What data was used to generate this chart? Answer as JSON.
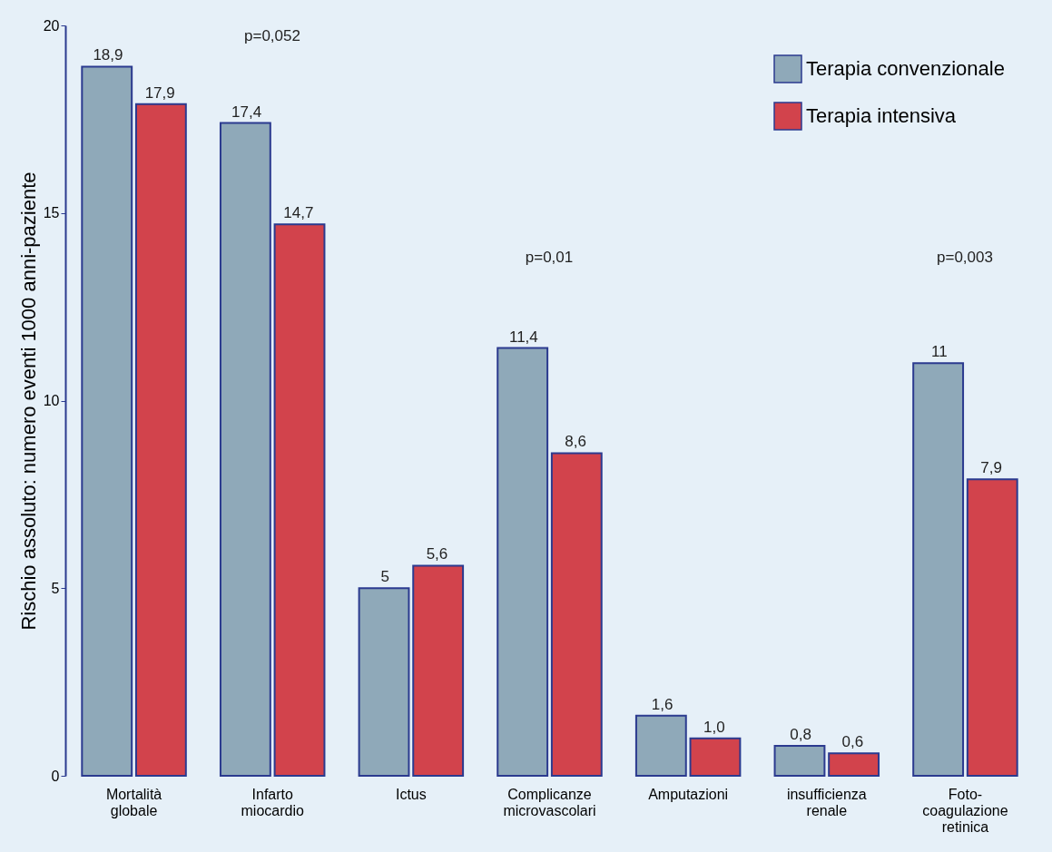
{
  "chart_data": {
    "type": "bar",
    "ylabel": "Rischio assoluto: numero eventi 1000 anni-paziente",
    "categories": [
      "Mortalità globale",
      "Infarto miocardio",
      "Ictus",
      "Complicanze microvascolari",
      "Amputazioni",
      "insufficienza renale",
      "Foto- coagulazione retinica"
    ],
    "series": [
      {
        "name": "Terapia convenzionale",
        "color": "#8fa9b9",
        "values": [
          18.9,
          17.4,
          5,
          11.4,
          1.6,
          0.8,
          11
        ],
        "value_labels": [
          "18,9",
          "17,4",
          "5",
          "11,4",
          "1,6",
          "0,8",
          "11"
        ]
      },
      {
        "name": "Terapia intensiva",
        "color": "#d2434c",
        "values": [
          17.9,
          14.7,
          5.6,
          8.6,
          1.0,
          0.6,
          7.9
        ],
        "value_labels": [
          "17,9",
          "14,7",
          "5,6",
          "8,6",
          "1,0",
          "0,6",
          "7,9"
        ]
      }
    ],
    "annotations": [
      "p=0,052",
      "p=0,01",
      "p=0,003"
    ],
    "ylim": [
      0,
      20
    ],
    "yticks": [
      0,
      5,
      10,
      15,
      20
    ],
    "grid": false,
    "legend": "top right"
  }
}
